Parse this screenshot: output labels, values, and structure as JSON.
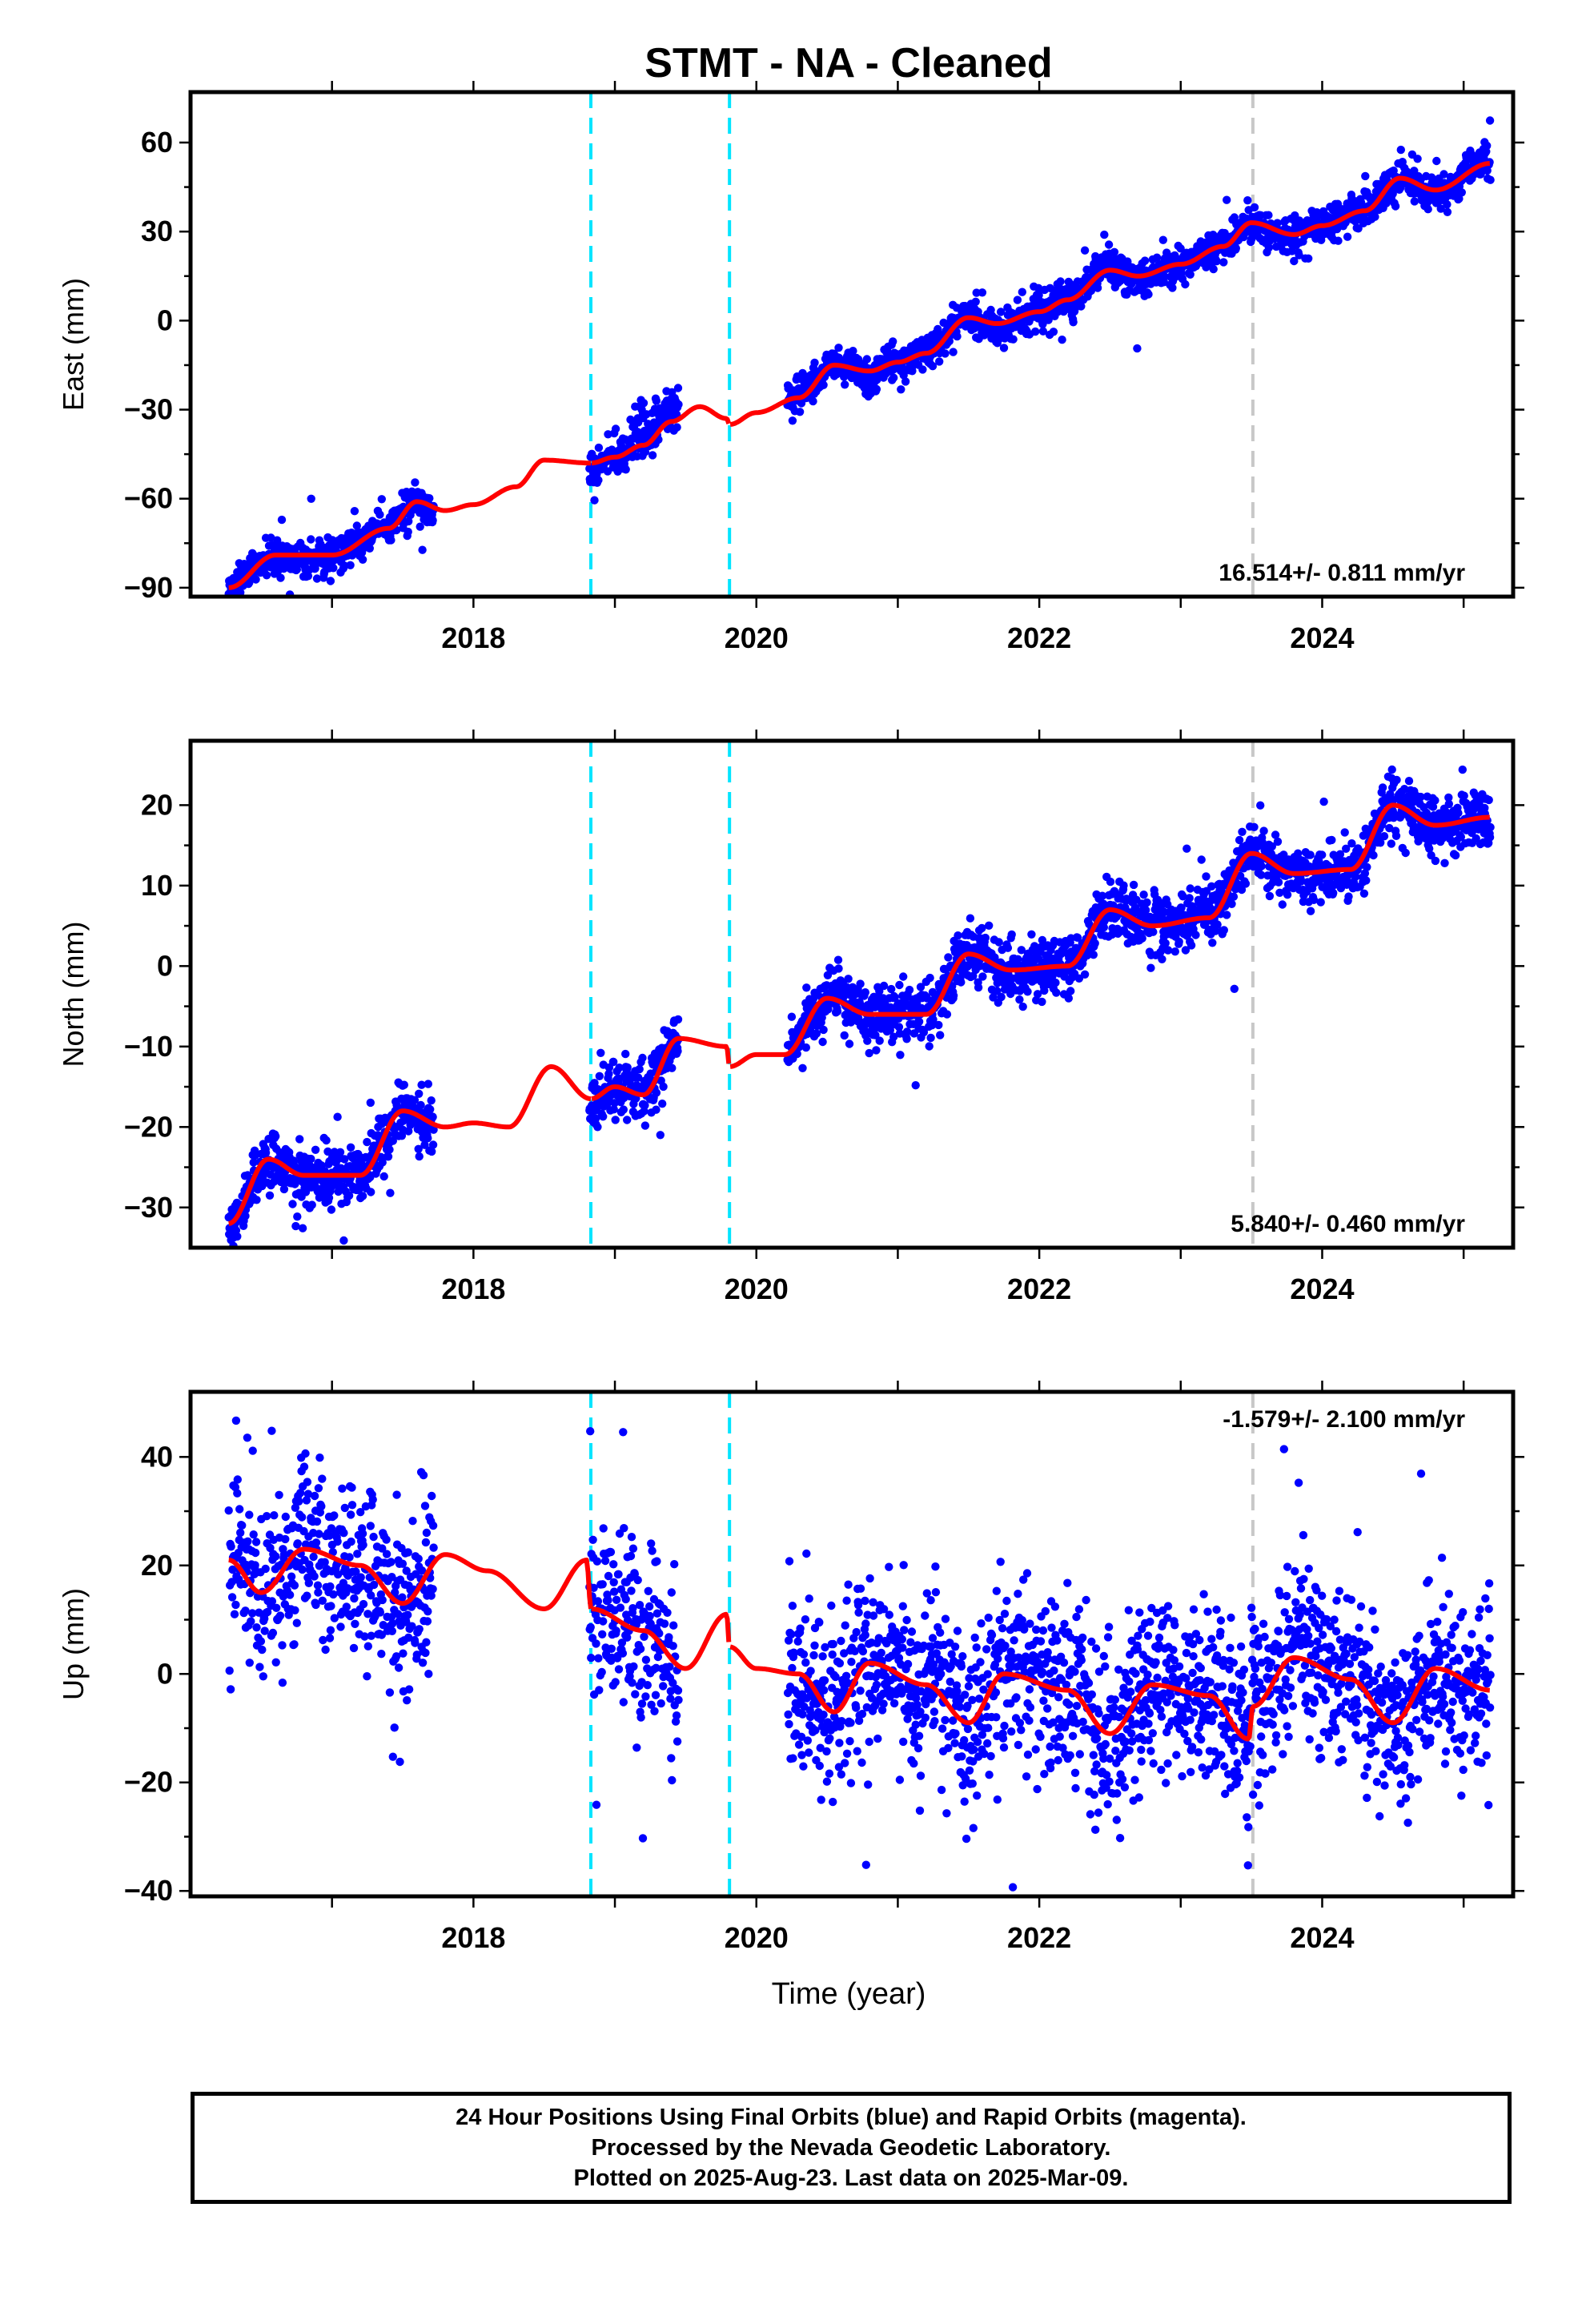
{
  "title": "STMT  - NA - Cleaned",
  "xlabel": "Time (year)",
  "colors": {
    "final_orbits": "#0000ff",
    "model": "#ff0000",
    "equipment_change": "#00e5ff",
    "earthquake": "#c8c8c8"
  },
  "footer": {
    "line1": "24 Hour Positions Using Final Orbits (blue) and Rapid Orbits (magenta).",
    "line2": "Processed by the Nevada Geodetic Laboratory.",
    "line3": "Plotted on 2025-Aug-23. Last data on 2025-Mar-09."
  },
  "chart_data": [
    {
      "type": "scatter",
      "name": "east",
      "ylabel": "East (mm)",
      "ylim": [
        -93,
        77
      ],
      "xlim": [
        2016.0,
        2025.35
      ],
      "yticks": [
        -90,
        -60,
        -30,
        0,
        30,
        60
      ],
      "xticks": [
        2018,
        2020,
        2022,
        2024
      ],
      "rate_text": "16.514+/- 0.811 mm/yr",
      "rate_position": "bottom-right",
      "cyan_lines": [
        2018.83,
        2019.81
      ],
      "gray_lines": [
        2023.51
      ],
      "data_segments": [
        [
          2016.27,
          2017.72
        ],
        [
          2018.82,
          2019.45
        ],
        [
          2020.22,
          2025.19
        ]
      ],
      "trend_points": [
        [
          2016.27,
          -90
        ],
        [
          2016.6,
          -79
        ],
        [
          2017.0,
          -79
        ],
        [
          2017.4,
          -70
        ],
        [
          2017.6,
          -61
        ],
        [
          2017.8,
          -64
        ],
        [
          2018.0,
          -62
        ],
        [
          2018.3,
          -56
        ],
        [
          2018.5,
          -47
        ],
        [
          2018.83,
          -48
        ],
        [
          2019.0,
          -46
        ],
        [
          2019.2,
          -42
        ],
        [
          2019.4,
          -34
        ],
        [
          2019.6,
          -29
        ],
        [
          2019.79,
          -33
        ],
        [
          2019.81,
          -35
        ],
        [
          2020.0,
          -31
        ],
        [
          2020.3,
          -26
        ],
        [
          2020.55,
          -15
        ],
        [
          2020.8,
          -17
        ],
        [
          2021.0,
          -14
        ],
        [
          2021.2,
          -11
        ],
        [
          2021.5,
          1
        ],
        [
          2021.7,
          -1
        ],
        [
          2022.0,
          3
        ],
        [
          2022.2,
          7
        ],
        [
          2022.5,
          17
        ],
        [
          2022.7,
          15
        ],
        [
          2023.0,
          19
        ],
        [
          2023.3,
          25
        ],
        [
          2023.5,
          33
        ],
        [
          2023.8,
          29
        ],
        [
          2024.0,
          32
        ],
        [
          2024.3,
          37
        ],
        [
          2024.55,
          48
        ],
        [
          2024.8,
          44
        ],
        [
          2025.19,
          53
        ]
      ],
      "seasonal_amp": 3.5,
      "noise_sd": 3.0,
      "offsets": [
        {
          "x0": 2019.1,
          "x1": 2019.5,
          "dy": 10
        }
      ]
    },
    {
      "type": "scatter",
      "name": "north",
      "ylabel": "North (mm)",
      "ylim": [
        -35,
        28
      ],
      "xlim": [
        2016.0,
        2025.35
      ],
      "yticks": [
        -30,
        -20,
        -10,
        0,
        10,
        20
      ],
      "xticks": [
        2018,
        2020,
        2022,
        2024
      ],
      "rate_text": "5.840+/- 0.460 mm/yr",
      "rate_position": "bottom-right",
      "cyan_lines": [
        2018.83,
        2019.81
      ],
      "gray_lines": [
        2023.51
      ],
      "data_segments": [
        [
          2016.27,
          2017.72
        ],
        [
          2018.82,
          2019.45
        ],
        [
          2020.22,
          2025.19
        ]
      ],
      "trend_points": [
        [
          2016.27,
          -32
        ],
        [
          2016.55,
          -24
        ],
        [
          2016.8,
          -26
        ],
        [
          2017.2,
          -26
        ],
        [
          2017.5,
          -18
        ],
        [
          2017.8,
          -20
        ],
        [
          2018.0,
          -19.5
        ],
        [
          2018.25,
          -20
        ],
        [
          2018.55,
          -12.5
        ],
        [
          2018.83,
          -16.5
        ],
        [
          2019.0,
          -15
        ],
        [
          2019.2,
          -16
        ],
        [
          2019.45,
          -9
        ],
        [
          2019.79,
          -10
        ],
        [
          2019.81,
          -12.5
        ],
        [
          2020.0,
          -11
        ],
        [
          2020.2,
          -11
        ],
        [
          2020.5,
          -4
        ],
        [
          2020.8,
          -6
        ],
        [
          2021.2,
          -6
        ],
        [
          2021.5,
          1.5
        ],
        [
          2021.8,
          -0.5
        ],
        [
          2022.2,
          0
        ],
        [
          2022.5,
          7
        ],
        [
          2022.8,
          5
        ],
        [
          2023.2,
          6
        ],
        [
          2023.5,
          14
        ],
        [
          2023.8,
          11.5
        ],
        [
          2024.2,
          12
        ],
        [
          2024.5,
          20
        ],
        [
          2024.8,
          17.5
        ],
        [
          2025.19,
          18.5
        ]
      ],
      "seasonal_amp": 0,
      "noise_sd": 1.8,
      "offsets": []
    },
    {
      "type": "scatter",
      "name": "up",
      "ylabel": "Up (mm)",
      "ylim": [
        -41,
        52
      ],
      "xlim": [
        2016.0,
        2025.35
      ],
      "yticks": [
        -40,
        -20,
        0,
        20,
        40
      ],
      "xticks": [
        2018,
        2020,
        2022,
        2024
      ],
      "rate_text": "-1.579+/- 2.100 mm/yr",
      "rate_position": "top-right",
      "cyan_lines": [
        2018.83,
        2019.81
      ],
      "gray_lines": [
        2023.51
      ],
      "data_segments": [
        [
          2016.27,
          2017.72
        ],
        [
          2018.82,
          2019.45
        ],
        [
          2020.22,
          2025.19
        ]
      ],
      "trend_points": [
        [
          2016.27,
          21
        ],
        [
          2016.5,
          15
        ],
        [
          2016.8,
          23
        ],
        [
          2017.2,
          20
        ],
        [
          2017.5,
          13
        ],
        [
          2017.8,
          22
        ],
        [
          2018.1,
          19
        ],
        [
          2018.5,
          12
        ],
        [
          2018.8,
          21
        ],
        [
          2018.83,
          12
        ],
        [
          2019.2,
          8
        ],
        [
          2019.5,
          1
        ],
        [
          2019.79,
          11
        ],
        [
          2019.81,
          5
        ],
        [
          2020.0,
          1
        ],
        [
          2020.3,
          0
        ],
        [
          2020.55,
          -7
        ],
        [
          2020.8,
          2
        ],
        [
          2021.2,
          -2
        ],
        [
          2021.5,
          -9
        ],
        [
          2021.75,
          0
        ],
        [
          2022.2,
          -3
        ],
        [
          2022.5,
          -11
        ],
        [
          2022.8,
          -2
        ],
        [
          2023.2,
          -4
        ],
        [
          2023.48,
          -12
        ],
        [
          2023.51,
          -6
        ],
        [
          2023.8,
          3
        ],
        [
          2024.2,
          -1
        ],
        [
          2024.5,
          -9
        ],
        [
          2024.8,
          1
        ],
        [
          2025.19,
          -3
        ]
      ],
      "seasonal_amp": 0,
      "noise_sd": 8.0,
      "offsets": []
    }
  ]
}
